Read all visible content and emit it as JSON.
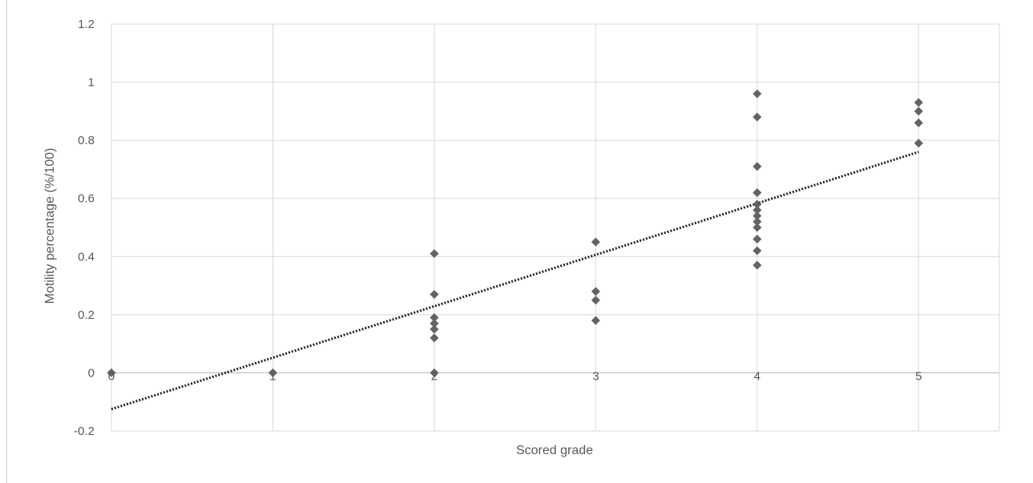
{
  "chart_data": {
    "type": "scatter",
    "title": "",
    "xlabel": "Scored grade",
    "ylabel": "Motility percentage (%/100)",
    "xlim": [
      0,
      5.5
    ],
    "ylim": [
      -0.2,
      1.2
    ],
    "x_ticks": [
      "0",
      "1",
      "2",
      "3",
      "4",
      "5"
    ],
    "y_ticks": [
      "-0.2",
      "0",
      "0.2",
      "0.4",
      "0.6",
      "0.8",
      "1",
      "1.2"
    ],
    "grid": true,
    "legend": "none",
    "series": [
      {
        "points": [
          [
            0,
            0
          ],
          [
            1,
            0
          ],
          [
            2,
            0.41
          ],
          [
            2,
            0.27
          ],
          [
            2,
            0.19
          ],
          [
            2,
            0.17
          ],
          [
            2,
            0.15
          ],
          [
            2,
            0.12
          ],
          [
            2,
            0.0
          ],
          [
            3,
            0.45
          ],
          [
            3,
            0.28
          ],
          [
            3,
            0.25
          ],
          [
            3,
            0.18
          ],
          [
            4,
            0.96
          ],
          [
            4,
            0.88
          ],
          [
            4,
            0.71
          ],
          [
            4,
            0.62
          ],
          [
            4,
            0.58
          ],
          [
            4,
            0.56
          ],
          [
            4,
            0.54
          ],
          [
            4,
            0.52
          ],
          [
            4,
            0.5
          ],
          [
            4,
            0.46
          ],
          [
            4,
            0.42
          ],
          [
            4,
            0.37
          ],
          [
            5,
            0.93
          ],
          [
            5,
            0.9
          ],
          [
            5,
            0.86
          ],
          [
            5,
            0.79
          ]
        ],
        "color": "#636363",
        "marker": "diamond"
      }
    ],
    "trendline": {
      "type": "linear",
      "style": "dotted",
      "color": "#222222",
      "x_start": 0,
      "y_start": -0.125,
      "x_end": 5,
      "y_end": 0.76
    }
  }
}
